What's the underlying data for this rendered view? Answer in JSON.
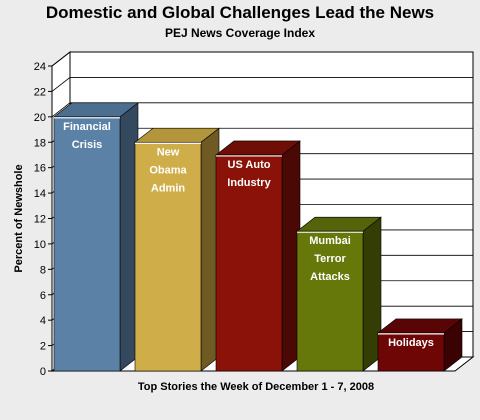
{
  "chart_data": {
    "type": "bar",
    "title": "Domestic and Global Challenges Lead the News",
    "subtitle": "PEJ News Coverage Index",
    "xlabel": "Top Stories the Week of December 1 - 7, 2008",
    "ylabel": "Percent of Newshole",
    "ylim": [
      0,
      24
    ],
    "yticks": [
      0,
      2,
      4,
      6,
      8,
      10,
      12,
      14,
      16,
      18,
      20,
      22,
      24
    ],
    "grid": true,
    "categories": [
      [
        "Financial",
        "Crisis"
      ],
      [
        "New",
        "Obama",
        "Admin"
      ],
      [
        "US Auto",
        "Industry"
      ],
      [
        "Mumbai",
        "Terror",
        "Attacks"
      ],
      [
        "Holidays"
      ]
    ],
    "values": [
      20,
      18,
      17,
      11,
      3
    ],
    "colors": [
      {
        "front": "#5b82a6",
        "side": "#34495e",
        "top": "#4d6f8f"
      },
      {
        "front": "#cfae4a",
        "side": "#6e5a22",
        "top": "#b3953b"
      },
      {
        "front": "#8a1208",
        "side": "#4a0904",
        "top": "#6e0e06"
      },
      {
        "front": "#66780a",
        "side": "#333d04",
        "top": "#55640a"
      },
      {
        "front": "#6e0606",
        "side": "#3a0202",
        "top": "#5a0505"
      }
    ]
  }
}
